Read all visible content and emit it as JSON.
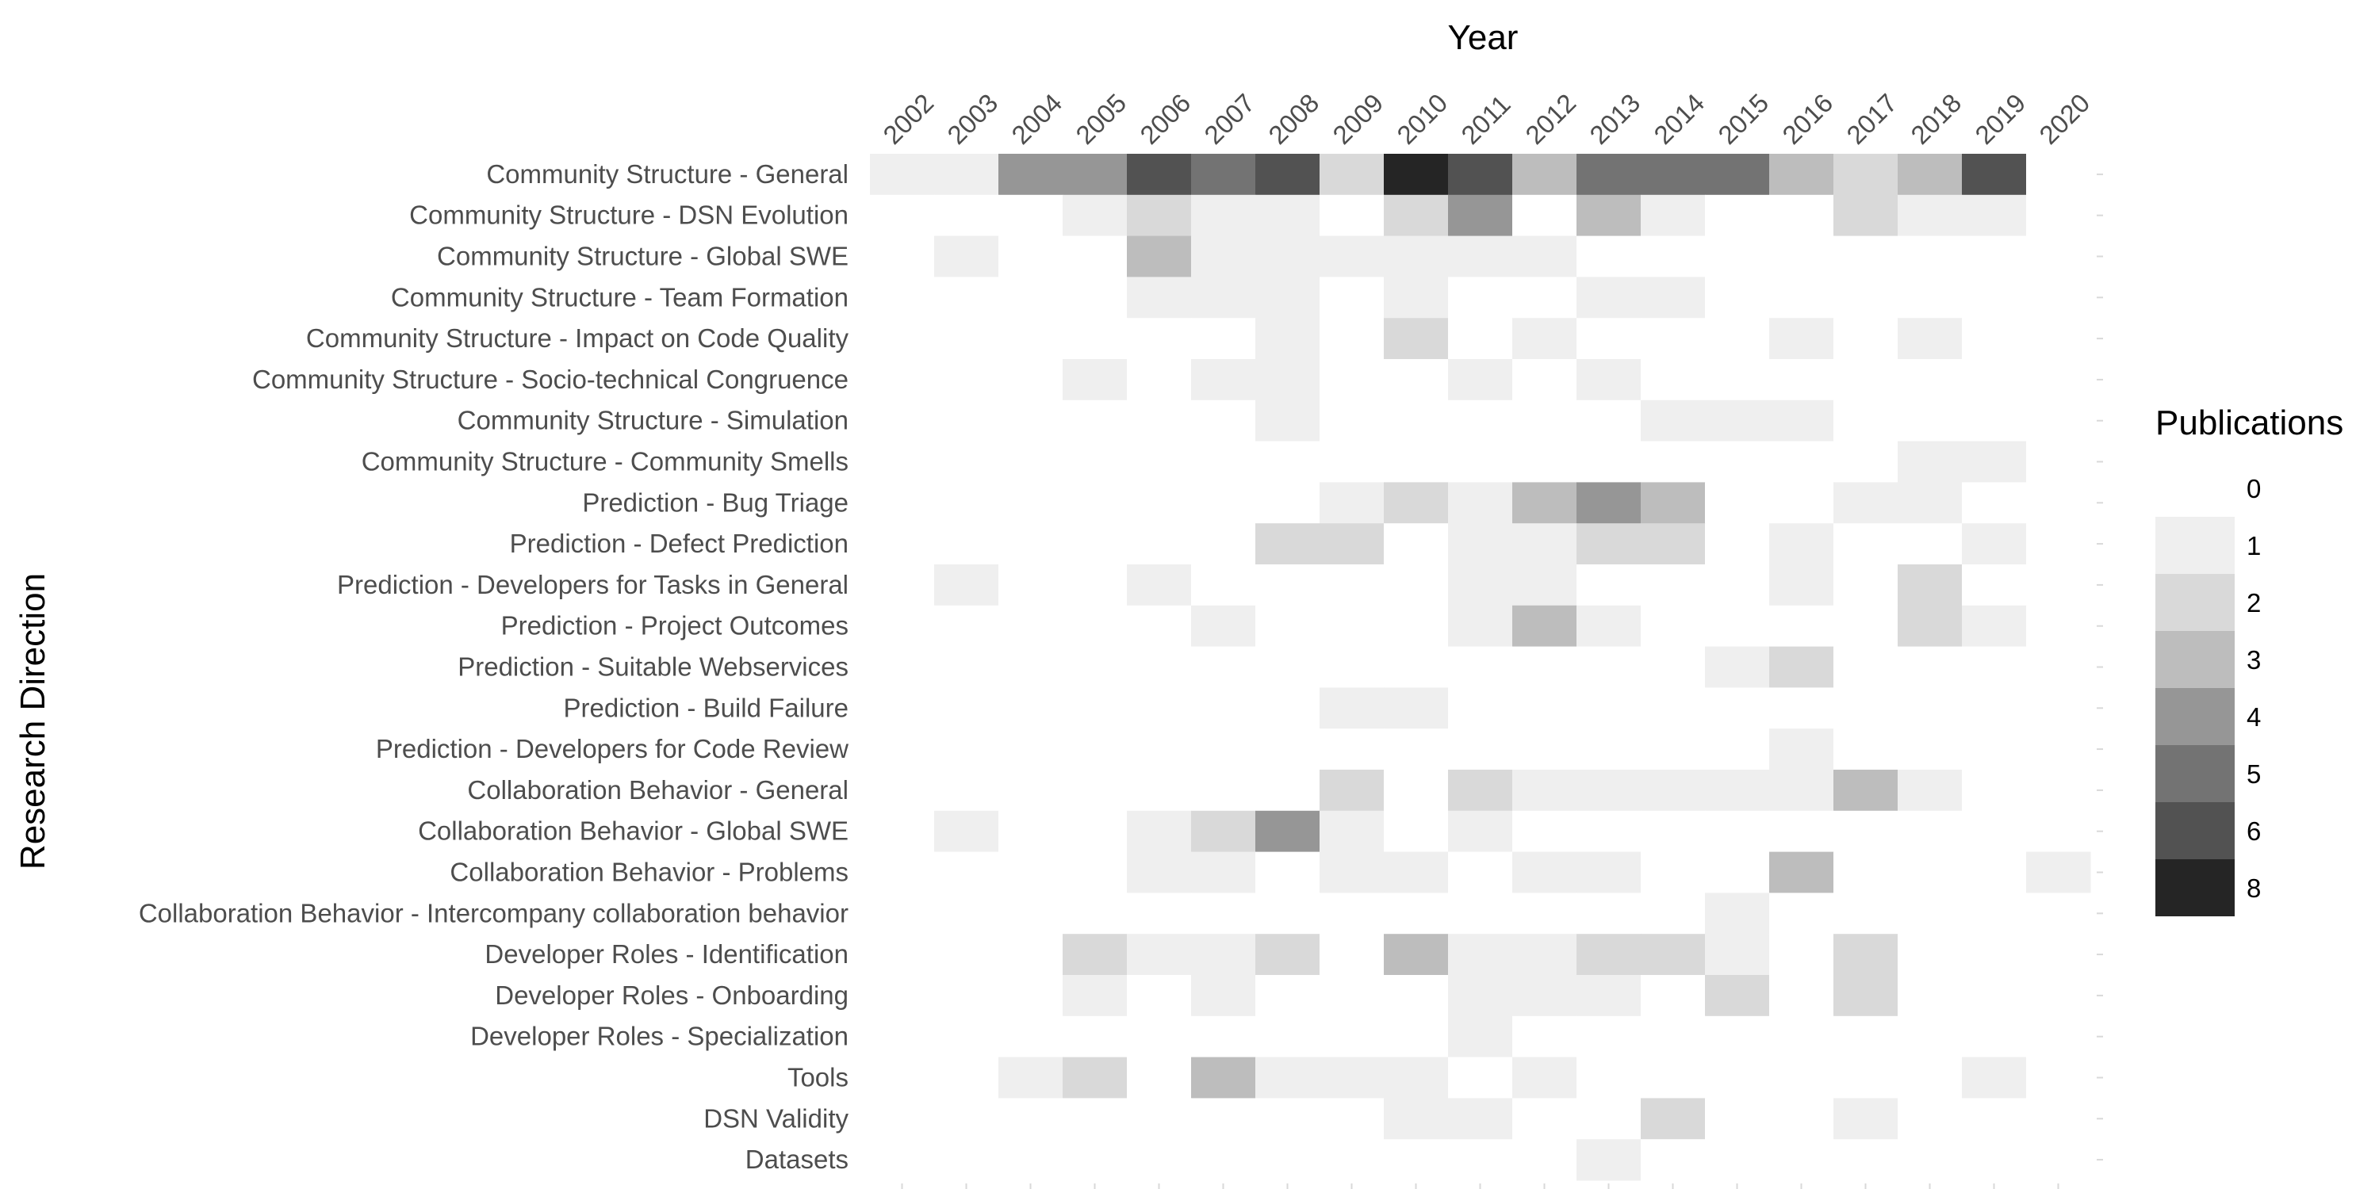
{
  "chart_data": {
    "type": "heatmap",
    "title": "Year",
    "xlabel": "Year",
    "ylabel": "Research Direction",
    "x": [
      "2002",
      "2003",
      "2004",
      "2005",
      "2006",
      "2007",
      "2008",
      "2009",
      "2010",
      "2011",
      "2012",
      "2013",
      "2014",
      "2015",
      "2016",
      "2017",
      "2018",
      "2019",
      "2020"
    ],
    "y": [
      "Community Structure - General",
      "Community Structure - DSN Evolution",
      "Community Structure - Global SWE",
      "Community Structure - Team Formation",
      "Community Structure - Impact on Code Quality",
      "Community Structure - Socio-technical Congruence",
      "Community Structure - Simulation",
      "Community Structure - Community Smells",
      "Prediction - Bug Triage",
      "Prediction - Defect Prediction",
      "Prediction - Developers for Tasks in General",
      "Prediction - Project Outcomes",
      "Prediction - Suitable Webservices",
      "Prediction - Build Failure",
      "Prediction - Developers for  Code Review",
      "Collaboration Behavior - General",
      "Collaboration Behavior - Global SWE",
      "Collaboration Behavior - Problems",
      "Collaboration Behavior - Intercompany collaboration behavior",
      "Developer Roles - Identification",
      "Developer Roles - Onboarding",
      "Developer Roles - Specialization",
      "Tools",
      "DSN Validity",
      "Datasets"
    ],
    "values": [
      [
        1,
        1,
        4,
        4,
        6,
        5,
        6,
        2,
        8,
        6,
        3,
        5,
        5,
        5,
        3,
        2,
        3,
        6,
        0
      ],
      [
        0,
        0,
        0,
        1,
        2,
        1,
        1,
        0,
        2,
        4,
        0,
        3,
        1,
        0,
        0,
        2,
        1,
        1,
        0
      ],
      [
        0,
        1,
        0,
        0,
        3,
        1,
        1,
        1,
        1,
        1,
        1,
        0,
        0,
        0,
        0,
        0,
        0,
        0,
        0
      ],
      [
        0,
        0,
        0,
        0,
        1,
        1,
        1,
        0,
        1,
        0,
        0,
        1,
        1,
        0,
        0,
        0,
        0,
        0,
        0
      ],
      [
        0,
        0,
        0,
        0,
        0,
        0,
        1,
        0,
        2,
        0,
        1,
        0,
        0,
        0,
        1,
        0,
        1,
        0,
        0
      ],
      [
        0,
        0,
        0,
        1,
        0,
        1,
        1,
        0,
        0,
        1,
        0,
        1,
        0,
        0,
        0,
        0,
        0,
        0,
        0
      ],
      [
        0,
        0,
        0,
        0,
        0,
        0,
        1,
        0,
        0,
        0,
        0,
        0,
        1,
        1,
        1,
        0,
        0,
        0,
        0
      ],
      [
        0,
        0,
        0,
        0,
        0,
        0,
        0,
        0,
        0,
        0,
        0,
        0,
        0,
        0,
        0,
        0,
        1,
        1,
        0
      ],
      [
        0,
        0,
        0,
        0,
        0,
        0,
        0,
        1,
        2,
        1,
        3,
        4,
        3,
        0,
        0,
        1,
        1,
        0,
        0
      ],
      [
        0,
        0,
        0,
        0,
        0,
        0,
        2,
        2,
        0,
        1,
        1,
        2,
        2,
        0,
        1,
        0,
        0,
        1,
        0
      ],
      [
        0,
        1,
        0,
        0,
        1,
        0,
        0,
        0,
        0,
        1,
        1,
        0,
        0,
        0,
        1,
        0,
        2,
        0,
        0
      ],
      [
        0,
        0,
        0,
        0,
        0,
        1,
        0,
        0,
        0,
        1,
        3,
        1,
        0,
        0,
        0,
        0,
        2,
        1,
        0
      ],
      [
        0,
        0,
        0,
        0,
        0,
        0,
        0,
        0,
        0,
        0,
        0,
        0,
        0,
        1,
        2,
        0,
        0,
        0,
        0
      ],
      [
        0,
        0,
        0,
        0,
        0,
        0,
        0,
        1,
        1,
        0,
        0,
        0,
        0,
        0,
        0,
        0,
        0,
        0,
        0
      ],
      [
        0,
        0,
        0,
        0,
        0,
        0,
        0,
        0,
        0,
        0,
        0,
        0,
        0,
        0,
        1,
        0,
        0,
        0,
        0
      ],
      [
        0,
        0,
        0,
        0,
        0,
        0,
        0,
        2,
        0,
        2,
        1,
        1,
        1,
        1,
        1,
        3,
        1,
        0,
        0
      ],
      [
        0,
        1,
        0,
        0,
        1,
        2,
        4,
        1,
        0,
        1,
        0,
        0,
        0,
        0,
        0,
        0,
        0,
        0,
        0
      ],
      [
        0,
        0,
        0,
        0,
        1,
        1,
        0,
        1,
        1,
        0,
        1,
        1,
        0,
        0,
        3,
        0,
        0,
        0,
        1
      ],
      [
        0,
        0,
        0,
        0,
        0,
        0,
        0,
        0,
        0,
        0,
        0,
        0,
        0,
        1,
        0,
        0,
        0,
        0,
        0
      ],
      [
        0,
        0,
        0,
        2,
        1,
        1,
        2,
        0,
        3,
        1,
        1,
        2,
        2,
        1,
        0,
        2,
        0,
        0,
        0
      ],
      [
        0,
        0,
        0,
        1,
        0,
        1,
        0,
        0,
        0,
        1,
        1,
        1,
        0,
        2,
        0,
        2,
        0,
        0,
        0
      ],
      [
        0,
        0,
        0,
        0,
        0,
        0,
        0,
        0,
        0,
        1,
        0,
        0,
        0,
        0,
        0,
        0,
        0,
        0,
        0
      ],
      [
        0,
        0,
        1,
        2,
        0,
        3,
        1,
        1,
        1,
        0,
        1,
        0,
        0,
        0,
        0,
        0,
        0,
        1,
        0
      ],
      [
        0,
        0,
        0,
        0,
        0,
        0,
        0,
        0,
        1,
        1,
        0,
        0,
        2,
        0,
        0,
        1,
        0,
        0,
        0
      ],
      [
        0,
        0,
        0,
        0,
        0,
        0,
        0,
        0,
        0,
        0,
        0,
        1,
        0,
        0,
        0,
        0,
        0,
        0,
        0
      ]
    ],
    "legend": {
      "title": "Publications",
      "placement": "right",
      "levels": [
        "0",
        "1",
        "2",
        "3",
        "4",
        "5",
        "6",
        "8"
      ]
    },
    "colors": {
      "0": "#ffffff",
      "1": "#efefef",
      "2": "#d9d9d9",
      "3": "#bdbdbd",
      "4": "#969696",
      "5": "#737373",
      "6": "#525252",
      "8": "#252525"
    },
    "grid": false
  }
}
